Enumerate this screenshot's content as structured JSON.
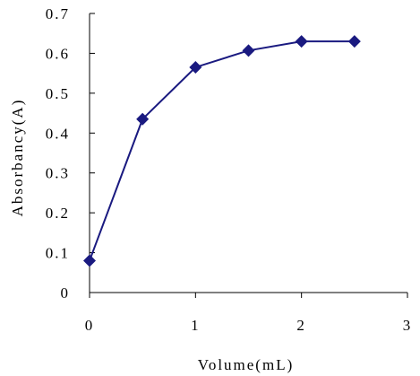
{
  "chart_data": {
    "type": "line",
    "xlabel": "Volume(mL)",
    "ylabel": "Absorbancy(A)",
    "xlim": [
      0,
      3
    ],
    "ylim": [
      0,
      0.7
    ],
    "x_ticks": [
      0,
      1,
      2,
      3
    ],
    "x_tick_labels": [
      "0",
      "1",
      "2",
      "3"
    ],
    "y_ticks": [
      0,
      0.1,
      0.2,
      0.3,
      0.4,
      0.5,
      0.6,
      0.7
    ],
    "y_tick_labels": [
      "0",
      "0.1",
      "0.2",
      "0.3",
      "0.4",
      "0.5",
      "0.6",
      "0.7"
    ],
    "grid": false,
    "legend": "none",
    "series": [
      {
        "x": [
          0,
          0.5,
          1.0,
          1.5,
          2.0,
          2.5
        ],
        "y": [
          0.08,
          0.435,
          0.565,
          0.607,
          0.63,
          0.63
        ],
        "color": "#1a1a80",
        "marker": "diamond"
      }
    ]
  }
}
